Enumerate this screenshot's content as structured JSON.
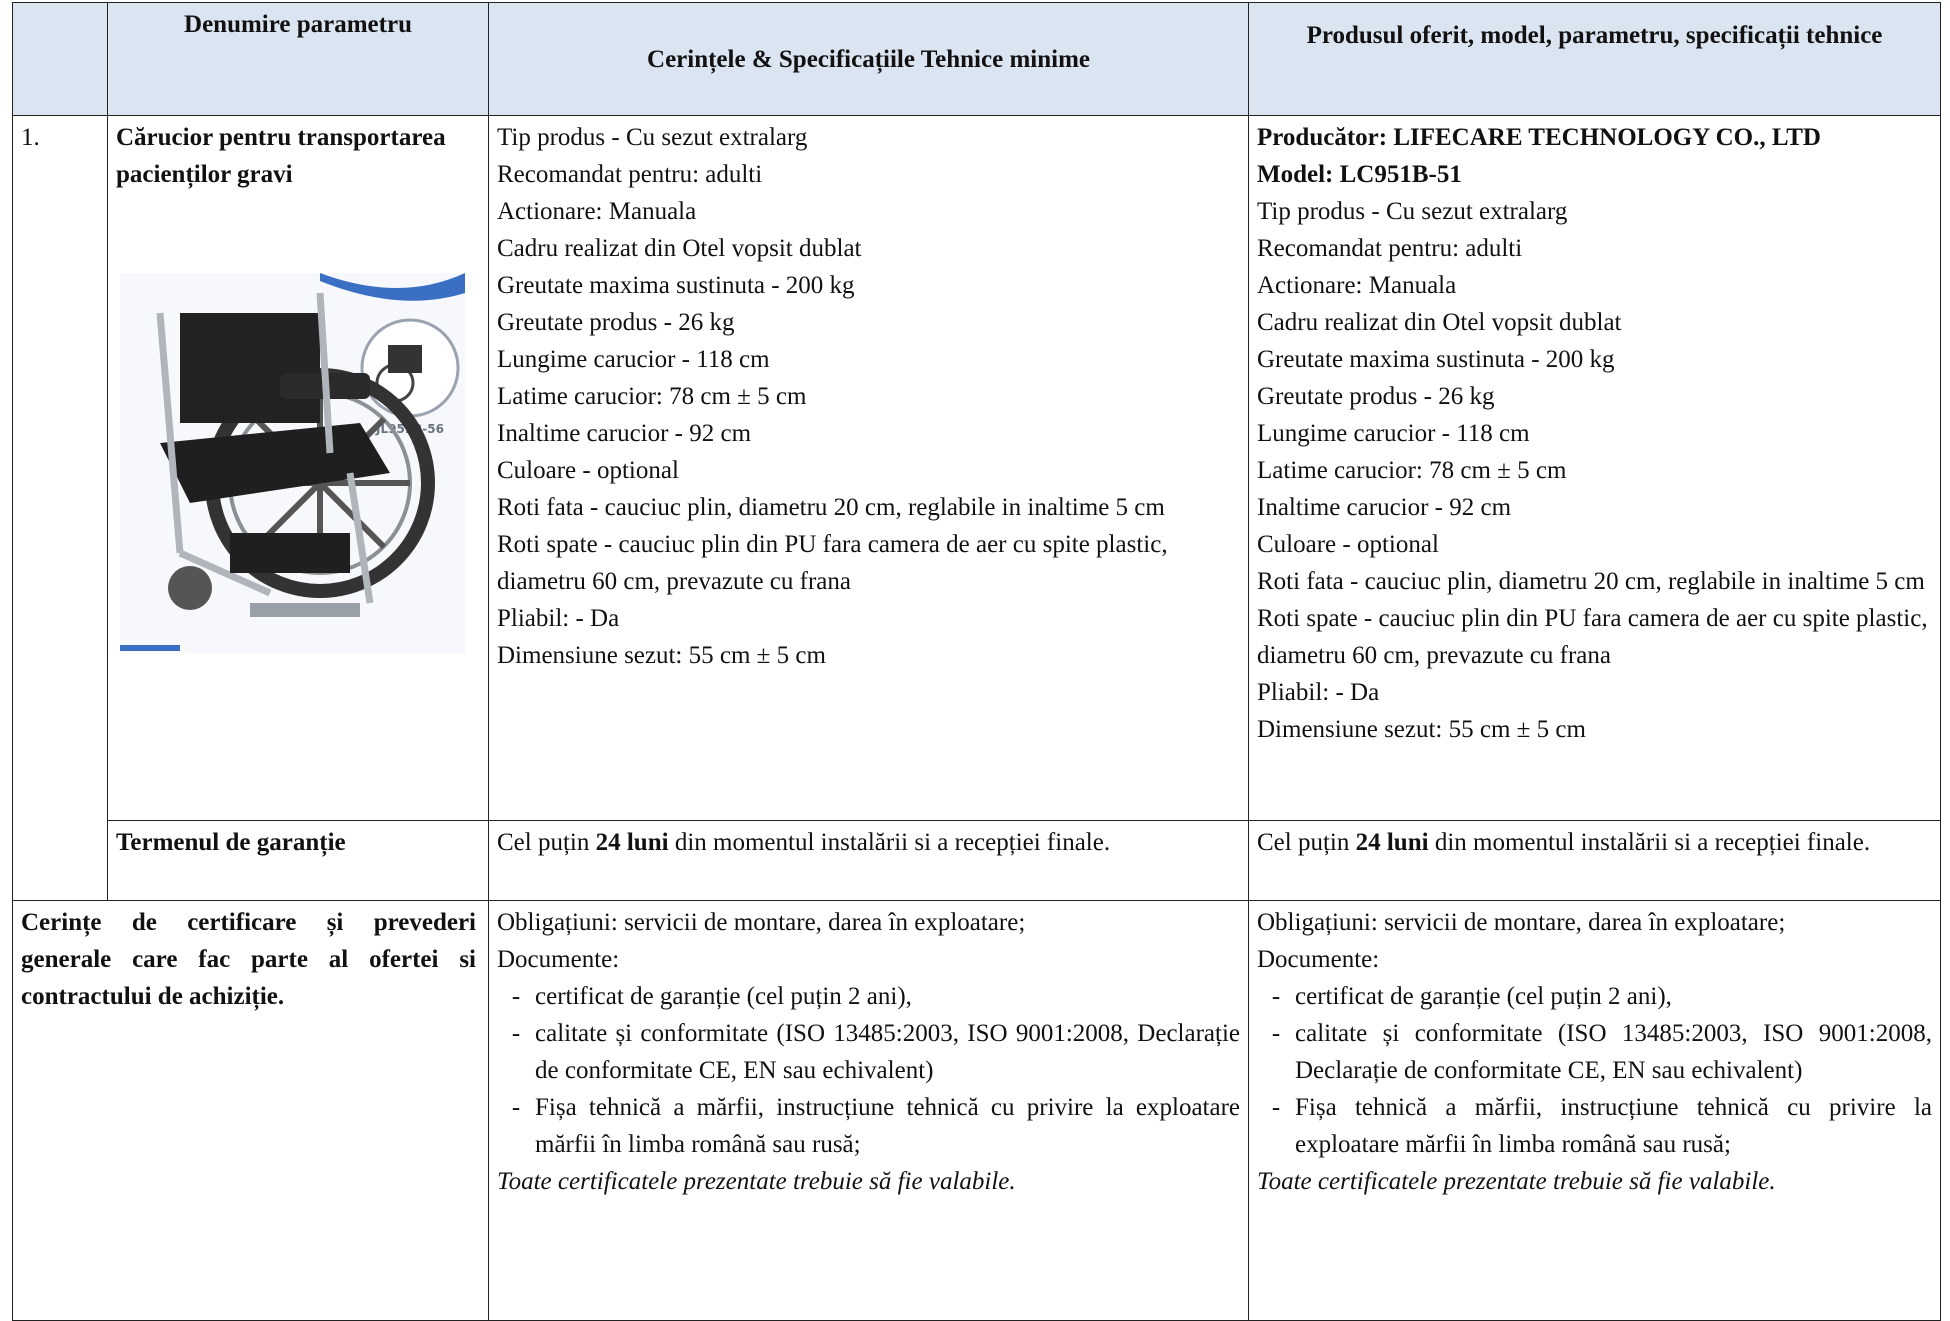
{
  "header": {
    "name": "Denumire parametru",
    "requirements": "Cerințele & Specificațiile Tehnice minime",
    "offered": "Produsul oferit, model, parametru, specificații tehnice"
  },
  "item": {
    "number": "1.",
    "name": "Cărucior pentru transportarea pacienților gravi",
    "image_label": "JL951B-56",
    "requirements": [
      "Tip produs - Cu sezut extralarg",
      "Recomandat pentru:  adulti",
      "Actionare:  Manuala",
      "Cadru realizat din Otel vopsit dublat",
      "Greutate maxima sustinuta - 200 kg",
      "Greutate produs - 26 kg",
      "Lungime carucior - 118 cm",
      "Latime carucior: 78 cm ± 5 cm",
      "Inaltime carucior  - 92 cm",
      "Culoare - optional",
      "Roti fata - cauciuc plin, diametru 20 cm, reglabile in inaltime 5 cm",
      "Roti spate - cauciuc plin din PU fara camera de aer cu spite plastic, diametru 60 cm, prevazute cu frana",
      "Pliabil: - Da",
      "Dimensiune sezut: 55 cm ± 5 cm"
    ],
    "offered_header": [
      "Producător: LIFECARE TECHNOLOGY CO., LTD",
      "Model: LC951B-51"
    ],
    "offered": [
      "Tip produs - Cu sezut extralarg",
      "Recomandat pentru:  adulti",
      "Actionare:  Manuala",
      "Cadru realizat din Otel vopsit dublat",
      "Greutate maxima sustinuta - 200 kg",
      "Greutate produs - 26 kg",
      "Lungime carucior - 118 cm",
      "Latime carucior: 78 cm ± 5 cm",
      "Inaltime carucior  - 92 cm",
      "Culoare - optional",
      "Roti fata - cauciuc plin, diametru 20 cm, reglabile in inaltime 5 cm",
      "Roti spate - cauciuc plin din PU fara camera de aer cu spite plastic, diametru 60 cm, prevazute cu frana",
      "Pliabil: - Da",
      "Dimensiune sezut: 55 cm ± 5 cm"
    ]
  },
  "warranty": {
    "name": "Termenul de garanție",
    "before": "Cel puțin",
    "bold": "24 luni",
    "after": "din momentul instalării si a recepției finale."
  },
  "certification": {
    "name": "Cerințe de certificare și prevederi generale care fac parte al ofertei si contractului de achiziție.",
    "obligations": "Obligațiuni: servicii de montare, darea în exploatare;",
    "documents_label": "Documente:",
    "documents": [
      "certificat de garanție (cel puțin 2 ani),",
      "calitate și conformitate (ISO 13485:2003, ISO 9001:2008, Declarație de conformitate CE, EN sau echivalent)",
      "Fișa tehnică a mărfii, instrucțiune tehnică cu privire la exploatare mărfii în limba română sau rusă;"
    ],
    "note": "Toate certificatele prezentate trebuie să fie valabile."
  }
}
